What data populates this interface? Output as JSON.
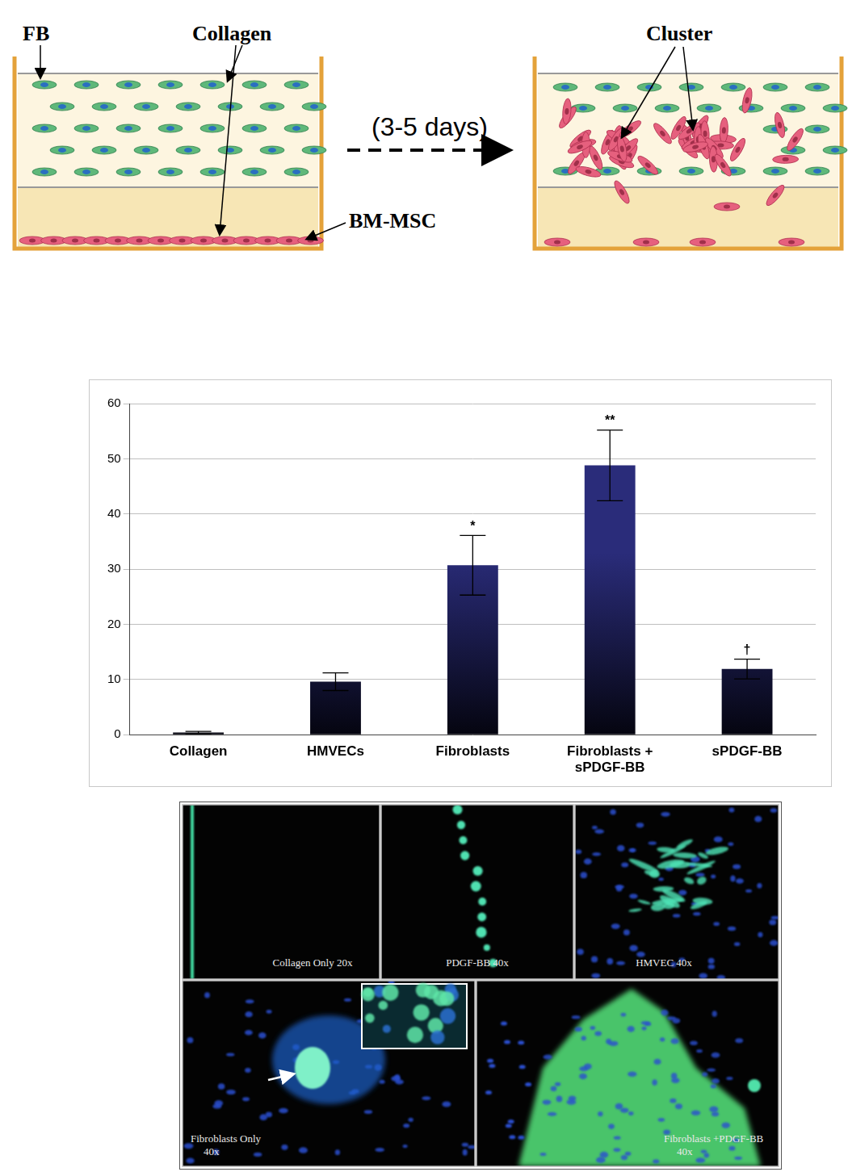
{
  "chart_data": {
    "type": "bar",
    "categories": [
      "Collagen",
      "HMVECs",
      "Fibroblasts",
      "Fibroblasts + sPDGF-BB",
      "sPDGF-BB"
    ],
    "values": [
      0.4,
      9.6,
      30.7,
      48.8,
      11.9
    ],
    "errors": [
      0.2,
      1.6,
      5.4,
      6.4,
      1.8
    ],
    "annotations": [
      null,
      null,
      "*",
      "**",
      "†"
    ],
    "color": "#2a2c7a",
    "ylim": [
      0,
      60
    ],
    "yticks": [
      0,
      10,
      20,
      30,
      40,
      50,
      60
    ],
    "grid": true
  },
  "diagram": {
    "fb": "FB",
    "collagen": "Collagen",
    "bm_msc": "BM-MSC",
    "time": "(3-5 days)",
    "cluster": "Cluster"
  },
  "micrographs": [
    {
      "lines": [
        "Collagen Only 20x"
      ]
    },
    {
      "lines": [
        "PDGF-BB 40x"
      ]
    },
    {
      "lines": [
        "HMVEC 40x"
      ]
    },
    {
      "lines": [
        "Fibroblasts Only",
        "40x"
      ]
    },
    {
      "lines": [
        "Fibroblasts +PDGF-BB",
        "40x"
      ]
    }
  ]
}
